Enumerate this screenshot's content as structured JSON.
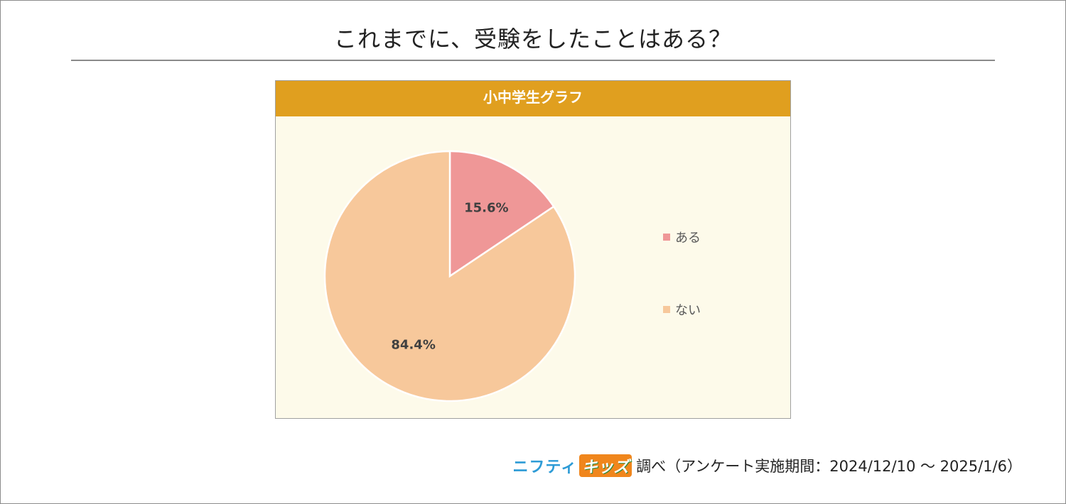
{
  "page": {
    "title": "これまでに、受験をしたことはある？"
  },
  "chart_data": {
    "type": "pie",
    "title": "小中学生グラフ",
    "slices": [
      {
        "label": "ある",
        "value": 15.6,
        "display": "15.6%",
        "color": "#ef9797"
      },
      {
        "label": "ない",
        "value": 84.4,
        "display": "84.4%",
        "color": "#f7c89b"
      }
    ],
    "legend_position": "right",
    "header_color": "#e09f1f",
    "background_color": "#fdfaea"
  },
  "footer": {
    "brand_part1": "ニフティ",
    "brand_part2": "キッズ",
    "text": "調べ（アンケート実施期間：2024/12/10 ～ 2025/1/6）"
  }
}
